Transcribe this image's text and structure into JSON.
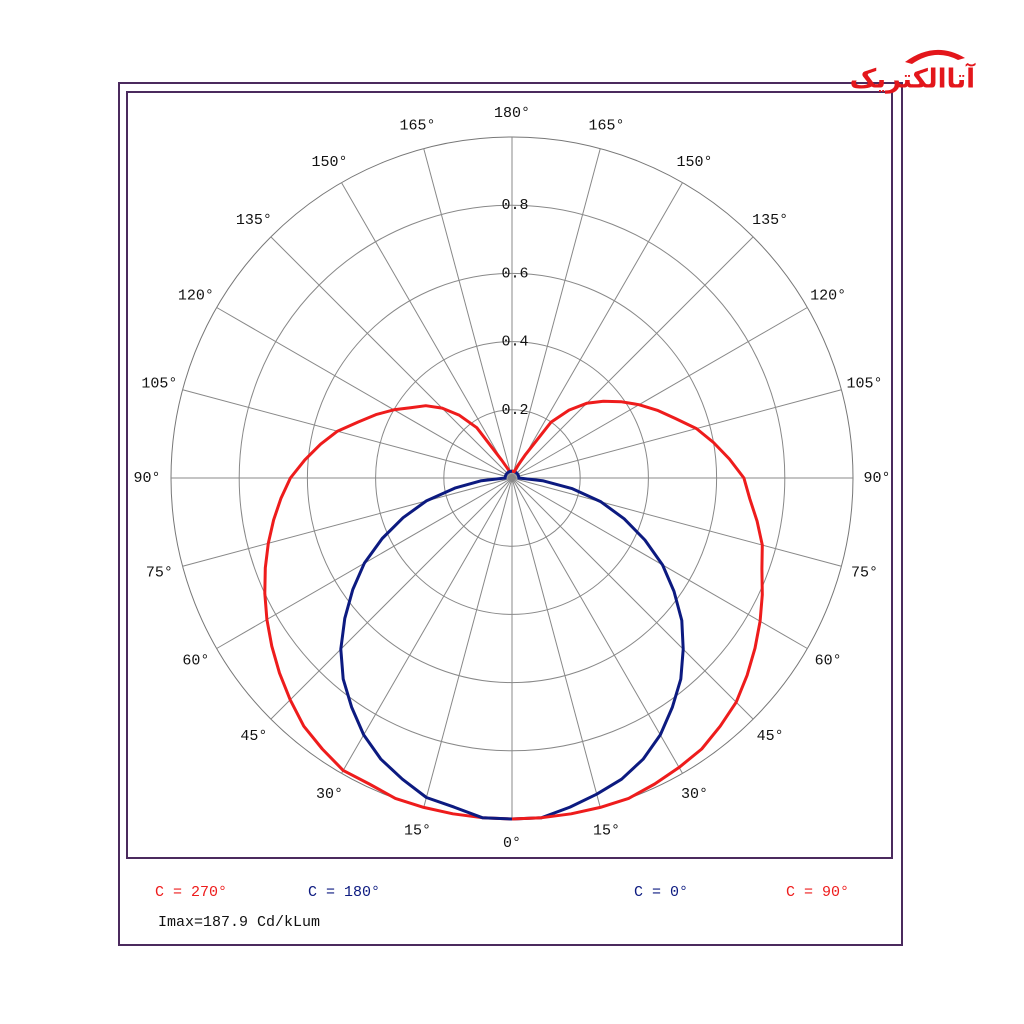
{
  "logo": "آتاالکتریک",
  "chart_data": {
    "type": "polar",
    "annotation": "Imax=187.9 Cd/kLum",
    "angles": [
      0,
      5,
      10,
      15,
      20,
      25,
      30,
      35,
      40,
      45,
      50,
      55,
      60,
      65,
      70,
      75,
      80,
      85,
      90,
      95,
      100,
      105,
      110,
      115,
      120,
      125,
      130,
      135,
      140,
      145,
      150,
      155,
      160,
      165,
      170,
      175,
      180
    ],
    "rlim": [
      0,
      1
    ],
    "rticks": [
      0.2,
      0.4,
      0.6,
      0.8
    ],
    "angle_ticks": [
      {
        "value": 0,
        "label": "0°"
      },
      {
        "value": 15,
        "label": "15°"
      },
      {
        "value": 30,
        "label": "30°"
      },
      {
        "value": 45,
        "label": "45°"
      },
      {
        "value": 60,
        "label": "60°"
      },
      {
        "value": 75,
        "label": "75°"
      },
      {
        "value": 90,
        "label": "90°"
      },
      {
        "value": 105,
        "label": "105°"
      },
      {
        "value": 120,
        "label": "120°"
      },
      {
        "value": 135,
        "label": "135°"
      },
      {
        "value": 150,
        "label": "150°"
      },
      {
        "value": 165,
        "label": "165°"
      },
      {
        "value": 180,
        "label": "180°"
      }
    ],
    "grid": true,
    "series": [
      {
        "name": "C = 270°",
        "color": "#ee1c1c",
        "side": "left",
        "values": [
          1.0,
          1.0,
          1.0,
          1.0,
          1.0,
          0.99,
          0.99,
          0.97,
          0.95,
          0.92,
          0.89,
          0.86,
          0.83,
          0.8,
          0.77,
          0.74,
          0.71,
          0.68,
          0.65,
          0.61,
          0.57,
          0.53,
          0.48,
          0.44,
          0.4,
          0.36,
          0.33,
          0.29,
          0.24,
          0.18,
          0.06,
          0.03,
          0.02,
          0.02,
          0.02,
          0.02,
          0.02
        ]
      },
      {
        "name": "C = 180°",
        "color": "#0c1a80",
        "side": "left",
        "values": [
          1.0,
          1.0,
          0.98,
          0.97,
          0.94,
          0.91,
          0.87,
          0.82,
          0.77,
          0.71,
          0.64,
          0.57,
          0.5,
          0.42,
          0.34,
          0.26,
          0.17,
          0.09,
          0.02,
          0.02,
          0.02,
          0.02,
          0.02,
          0.02,
          0.02,
          0.02,
          0.02,
          0.02,
          0.02,
          0.02,
          0.02,
          0.02,
          0.02,
          0.02,
          0.02,
          0.02,
          0.02
        ]
      },
      {
        "name": "C = 0°",
        "color": "#0c1a80",
        "side": "right",
        "values": [
          1.0,
          1.0,
          0.98,
          0.96,
          0.94,
          0.91,
          0.87,
          0.82,
          0.77,
          0.71,
          0.65,
          0.58,
          0.51,
          0.43,
          0.35,
          0.27,
          0.18,
          0.09,
          0.02,
          0.02,
          0.02,
          0.02,
          0.02,
          0.02,
          0.02,
          0.02,
          0.02,
          0.02,
          0.02,
          0.02,
          0.02,
          0.02,
          0.02,
          0.02,
          0.02,
          0.02,
          0.02
        ]
      },
      {
        "name": "C = 90°",
        "color": "#ee1c1c",
        "side": "right",
        "values": [
          1.0,
          1.0,
          1.0,
          1.0,
          1.0,
          0.99,
          0.98,
          0.97,
          0.95,
          0.93,
          0.9,
          0.87,
          0.84,
          0.81,
          0.78,
          0.76,
          0.73,
          0.7,
          0.68,
          0.64,
          0.6,
          0.56,
          0.51,
          0.47,
          0.43,
          0.39,
          0.35,
          0.31,
          0.26,
          0.2,
          0.08,
          0.04,
          0.02,
          0.02,
          0.02,
          0.02,
          0.02
        ]
      }
    ]
  }
}
